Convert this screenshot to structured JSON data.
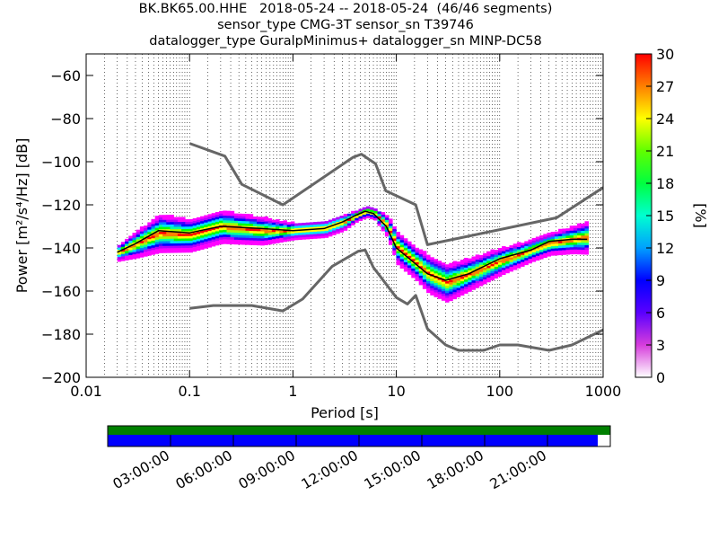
{
  "title": {
    "line1": "BK.BK65.00.HHE   2018-05-24 -- 2018-05-24  (46/46 segments)",
    "line2": "sensor_type CMG-3T sensor_sn T39746",
    "line3": "datalogger_type GuralpMinimus+ datalogger_sn MINP-DC58"
  },
  "chart_data": [
    {
      "type": "heatmap",
      "xlabel": "Period [s]",
      "ylabel": "Power [m²/s⁴/Hz] [dB]",
      "xscale": "log",
      "xlim": [
        0.01,
        1000
      ],
      "ylim": [
        -200,
        -50
      ],
      "xticks": [
        0.01,
        0.1,
        1,
        10,
        100,
        1000
      ],
      "xtick_labels": [
        "0.01",
        "0.1",
        "1",
        "10",
        "100",
        "1000"
      ],
      "yticks": [
        -200,
        -180,
        -160,
        -140,
        -120,
        -100,
        -80,
        -60
      ],
      "ytick_labels": [
        "−200",
        "−180",
        "−160",
        "−140",
        "−120",
        "−100",
        "−80",
        "−60"
      ],
      "grid": "dotted vertical lines at each period-bin",
      "colorbar": {
        "label": "[%]",
        "min": 0,
        "max": 30,
        "ticks": [
          0,
          3,
          6,
          9,
          12,
          15,
          18,
          21,
          24,
          27,
          30
        ],
        "colormap": "pqlx (white-magenta-blue-cyan-green-yellow-red)"
      },
      "series": [
        {
          "type": "line",
          "color": "#666666",
          "x": [
            0.1,
            0.22,
            0.32,
            0.8,
            3.8,
            4.6,
            6.3,
            7.9,
            15.4,
            20,
            354.8,
            1000
          ],
          "y": [
            -91.5,
            -97.4,
            -110.5,
            -120,
            -98,
            -96.5,
            -101,
            -113.5,
            -120,
            -138.5,
            -126,
            -112
          ]
        },
        {
          "type": "line",
          "color": "#666666",
          "x": [
            0.1,
            0.17,
            0.4,
            0.8,
            1.24,
            2.4,
            4.3,
            5.0,
            6.0,
            10,
            12.8,
            15.4,
            20,
            30,
            40,
            70,
            100,
            150,
            300,
            500,
            1000
          ],
          "y": [
            -168,
            -166.7,
            -166.7,
            -169.2,
            -163.7,
            -148.5,
            -141.5,
            -141,
            -149,
            -163,
            -166,
            -162,
            -177.5,
            -185,
            -187.5,
            -187.5,
            -185,
            -185,
            -187.5,
            -185,
            -178
          ]
        },
        {
          "type": "line",
          "color": "#000000",
          "x": [
            0.02,
            0.03,
            0.05,
            0.1,
            0.2,
            0.5,
            1,
            2,
            3,
            4,
            5,
            6,
            8,
            10,
            15,
            20,
            30,
            50,
            100,
            200,
            300,
            500,
            700
          ],
          "y": [
            -142,
            -138,
            -132,
            -133,
            -130,
            -131,
            -132,
            -131,
            -128,
            -125,
            -123,
            -124,
            -130,
            -140,
            -147,
            -152,
            -155,
            -152,
            -145,
            -141,
            -137,
            -136,
            -136
          ]
        }
      ],
      "density": {
        "x": [
          0.02,
          0.03,
          0.05,
          0.1,
          0.2,
          0.5,
          1,
          2,
          3,
          4,
          5,
          6,
          8,
          10,
          15,
          20,
          30,
          50,
          100,
          200,
          300,
          500,
          700
        ],
        "center_db": [
          -142,
          -138,
          -133,
          -134,
          -130,
          -132,
          -132,
          -131,
          -128,
          -125,
          -123,
          -124,
          -130,
          -140,
          -147,
          -152,
          -156,
          -152,
          -146,
          -141,
          -138,
          -136,
          -135
        ],
        "spread_db": [
          3,
          5,
          7,
          6,
          6,
          5,
          3,
          3,
          3,
          2,
          2,
          2,
          4,
          6,
          6,
          7,
          7,
          6,
          5,
          4,
          4,
          5,
          6
        ]
      }
    },
    {
      "type": "table",
      "name": "data-availability",
      "time_ticks": [
        "03:00:00",
        "06:00:00",
        "09:00:00",
        "12:00:00",
        "15:00:00",
        "18:00:00",
        "21:00:00"
      ],
      "coverage_green": 1.0,
      "coverage_blue": 0.975,
      "colors": {
        "green": "#008000",
        "blue": "#0000ff"
      }
    }
  ]
}
